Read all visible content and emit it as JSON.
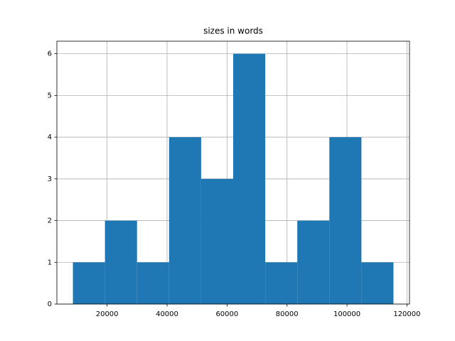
{
  "chart_data": {
    "type": "histogram",
    "title": "sizes in words",
    "bins": [
      8600,
      19290,
      29980,
      40670,
      51360,
      62050,
      72740,
      83430,
      94120,
      104810,
      115500
    ],
    "values": [
      1,
      2,
      1,
      4,
      3,
      6,
      1,
      2,
      4,
      1
    ],
    "color": "#1f77b4",
    "xlim": [
      3255,
      120845
    ],
    "xticks": [
      20000,
      40000,
      60000,
      80000,
      100000,
      120000
    ],
    "ylim": [
      0,
      6.3
    ],
    "yticks": [
      0,
      1,
      2,
      3,
      4,
      5,
      6
    ],
    "grid": true
  }
}
